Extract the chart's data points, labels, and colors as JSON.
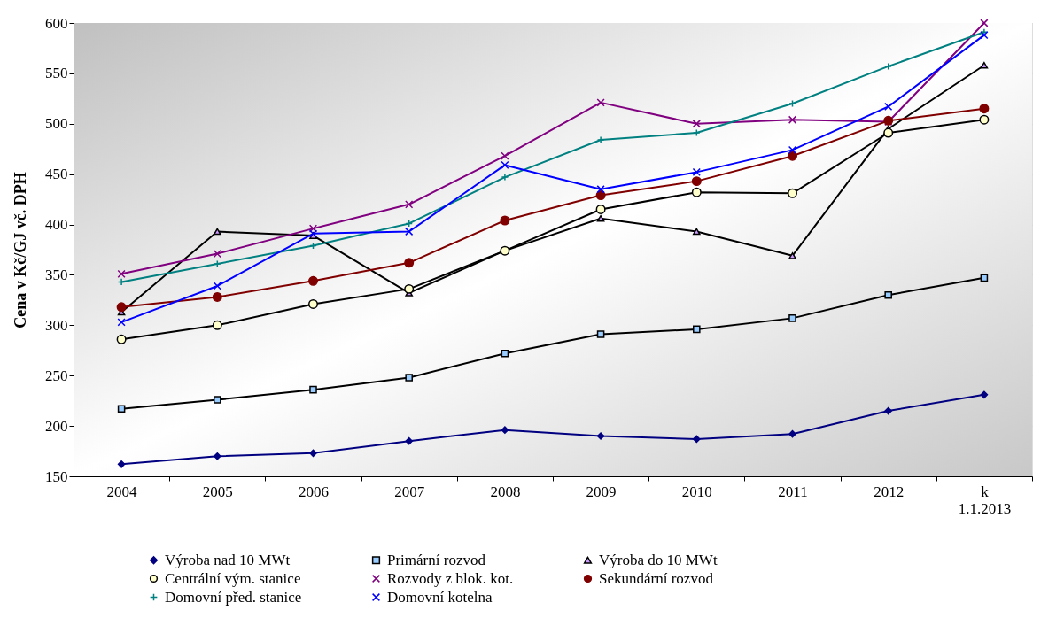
{
  "chart_data": {
    "type": "line",
    "ylabel": "Cena v Kč/GJ vč. DPH",
    "categories": [
      "2004",
      "2005",
      "2006",
      "2007",
      "2008",
      "2009",
      "2010",
      "2011",
      "2012",
      "k\n1.1.2013"
    ],
    "ylim": [
      150,
      600
    ],
    "yticks": [
      150,
      200,
      250,
      300,
      350,
      400,
      450,
      500,
      550,
      600
    ],
    "grid": "y",
    "legend": "bottom",
    "series": [
      {
        "name": "Výroba nad 10 MWt",
        "color": "#000080",
        "marker": "diamond",
        "values": [
          162,
          170,
          173,
          185,
          196,
          190,
          187,
          192,
          215,
          231
        ]
      },
      {
        "name": "Primární rozvod",
        "color": "#000000",
        "marker": "square",
        "values": [
          217,
          226,
          236,
          248,
          272,
          291,
          296,
          307,
          330,
          347
        ]
      },
      {
        "name": "Výroba do 10 MWt",
        "color": "#000000",
        "marker": "triangle",
        "values": [
          313,
          393,
          389,
          332,
          374,
          406,
          393,
          369,
          495,
          558
        ]
      },
      {
        "name": "Centrální vým. stanice",
        "color": "#000000",
        "marker": "circle",
        "values": [
          286,
          300,
          321,
          336,
          374,
          415,
          432,
          431,
          491,
          504
        ]
      },
      {
        "name": "Rozvody z blok. kot.",
        "color": "#800080",
        "marker": "cross",
        "values": [
          351,
          371,
          396,
          420,
          468,
          521,
          500,
          504,
          502,
          600
        ]
      },
      {
        "name": "Sekundární rozvod",
        "color": "#800000",
        "marker": "circle",
        "values": [
          318,
          328,
          344,
          362,
          404,
          429,
          443,
          468,
          503,
          515
        ]
      },
      {
        "name": "Domovní před. stanice",
        "color": "#008080",
        "marker": "plus",
        "values": [
          343,
          361,
          379,
          401,
          447,
          484,
          491,
          520,
          557,
          591
        ]
      },
      {
        "name": "Domovní kotelna",
        "color": "#0000ff",
        "marker": "cross",
        "values": [
          303,
          339,
          391,
          393,
          459,
          435,
          452,
          474,
          517,
          588
        ]
      }
    ]
  }
}
